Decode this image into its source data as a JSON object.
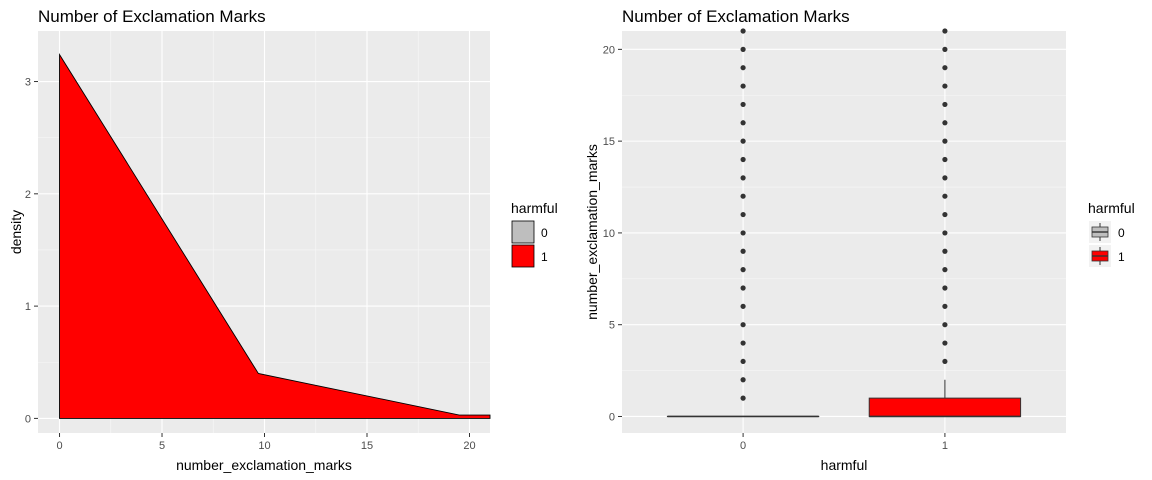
{
  "chart_data": [
    {
      "type": "area",
      "title": "Number of Exclamation Marks",
      "xlabel": "number_exclamation_marks",
      "ylabel": "density",
      "xlim": [
        -1.05,
        21
      ],
      "ylim": [
        -0.13,
        3.45
      ],
      "x_ticks": [
        0,
        5,
        10,
        15,
        20
      ],
      "y_ticks": [
        0,
        1,
        2,
        3
      ],
      "grid": true,
      "legend": {
        "title": "harmful",
        "placement": "right",
        "items": [
          {
            "label": "0",
            "color": "#bebebe"
          },
          {
            "label": "1",
            "color": "#ff0000"
          }
        ]
      },
      "series": [
        {
          "name": "1",
          "color": "#ff0000",
          "points": [
            [
              0,
              3.24
            ],
            [
              9.7,
              0.4
            ],
            [
              19.5,
              0.03
            ],
            [
              21,
              0.03
            ]
          ]
        }
      ]
    },
    {
      "type": "box",
      "title": "Number of Exclamation Marks",
      "xlabel": "harmful",
      "ylabel": "number_exclamation_marks",
      "categories": [
        "0",
        "1"
      ],
      "ylim": [
        -0.9,
        21
      ],
      "y_ticks": [
        0,
        5,
        10,
        15,
        20
      ],
      "grid": true,
      "legend": {
        "title": "harmful",
        "placement": "right",
        "items": [
          {
            "label": "0",
            "color": "#bebebe"
          },
          {
            "label": "1",
            "color": "#ff0000"
          }
        ]
      },
      "boxes": [
        {
          "category": "0",
          "color": "#bebebe",
          "q1": 0,
          "median": 0,
          "q3": 0,
          "whisker_low": 0,
          "whisker_high": 0,
          "outliers": [
            1,
            2,
            3,
            4,
            5,
            6,
            7,
            8,
            9,
            10,
            11,
            12,
            13,
            14,
            15,
            16,
            17,
            18,
            19,
            20,
            21
          ]
        },
        {
          "category": "1",
          "color": "#ff0000",
          "q1": 0,
          "median": 0,
          "q3": 1,
          "whisker_low": 0,
          "whisker_high": 2,
          "outliers": [
            3,
            4,
            5,
            6,
            7,
            8,
            9,
            10,
            11,
            12,
            13,
            14,
            15,
            16,
            17,
            18,
            19,
            20,
            21
          ]
        }
      ]
    }
  ]
}
